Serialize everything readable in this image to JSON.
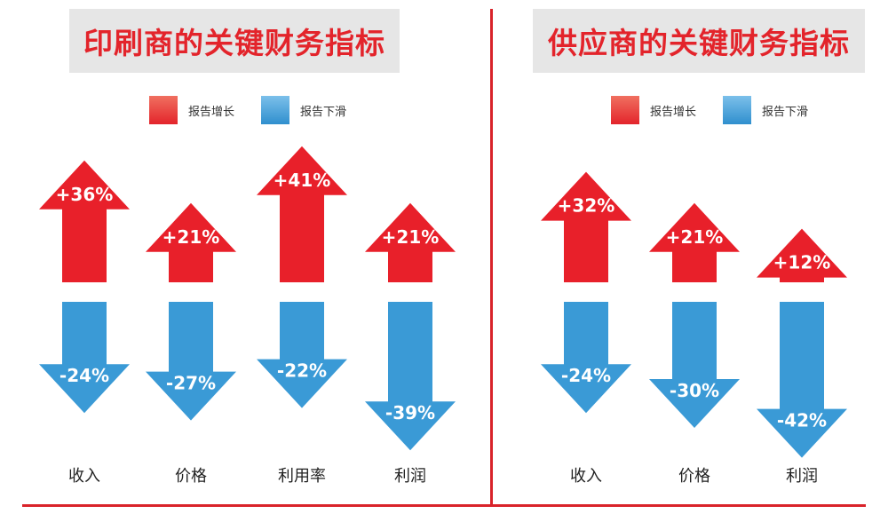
{
  "colors": {
    "up": "#e8202a",
    "down": "#3a9ad6",
    "accent": "#d9232a"
  },
  "legend": {
    "up": "报告增长",
    "down": "报告下滑"
  },
  "chart_data": [
    {
      "type": "bar",
      "title": "印刷商的关键财务指标",
      "categories": [
        "收入",
        "价格",
        "利用率",
        "利润"
      ],
      "series": [
        {
          "name": "报告增长",
          "values": [
            36,
            21,
            41,
            21
          ]
        },
        {
          "name": "报告下滑",
          "values": [
            -24,
            -27,
            -22,
            -39
          ]
        }
      ]
    },
    {
      "type": "bar",
      "title": "供应商的关键财务指标",
      "categories": [
        "收入",
        "价格",
        "利润"
      ],
      "series": [
        {
          "name": "报告增长",
          "values": [
            32,
            21,
            12
          ]
        },
        {
          "name": "报告下滑",
          "values": [
            -24,
            -30,
            -42
          ]
        }
      ]
    }
  ]
}
